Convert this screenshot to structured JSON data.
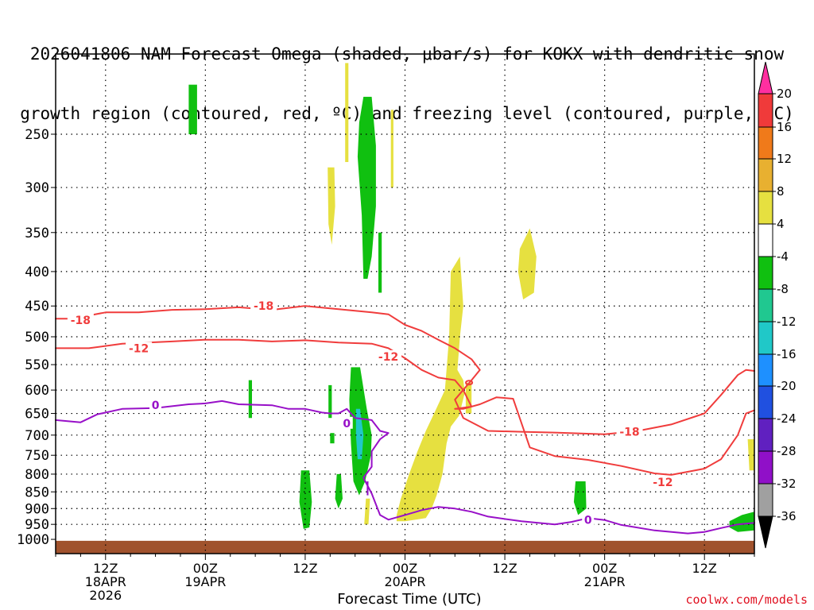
{
  "title_line1": "2026041806 NAM Forecast Omega (shaded, μbar/s) for KOKX with dendritic snow",
  "title_line2": "growth region (contoured, red, ºC) and freezing level (contoured, purple, ºC)",
  "xaxis_title": "Forecast Time (UTC)",
  "credit": "coolwx.com/models",
  "chart_data": {
    "type": "time-height contour",
    "title": "2026041806 NAM Forecast Omega (shaded, μbar/s) for KOKX with dendritic snow growth region (contoured, red, ºC) and freezing level (contoured, purple, ºC)",
    "xlabel": "Forecast Time (UTC)",
    "ylabel": "Pressure (hPa)",
    "x_range_hours": [
      0,
      84
    ],
    "y_range_hpa": [
      1050,
      190
    ],
    "y_ticks": [
      250,
      300,
      350,
      400,
      450,
      500,
      550,
      600,
      650,
      700,
      750,
      800,
      850,
      900,
      950,
      1000
    ],
    "x_ticks": [
      {
        "hour": 6,
        "lines": [
          "12Z",
          "18APR",
          "2026"
        ]
      },
      {
        "hour": 18,
        "lines": [
          "00Z",
          "19APR"
        ]
      },
      {
        "hour": 30,
        "lines": [
          "12Z"
        ]
      },
      {
        "hour": 42,
        "lines": [
          "00Z",
          "20APR"
        ]
      },
      {
        "hour": 54,
        "lines": [
          "12Z"
        ]
      },
      {
        "hour": 66,
        "lines": [
          "00Z",
          "21APR"
        ]
      },
      {
        "hour": 78,
        "lines": [
          "12Z"
        ]
      }
    ],
    "colorbar": {
      "labels": [
        "20",
        "16",
        "12",
        "8",
        "4",
        "-4",
        "-8",
        "-12",
        "-16",
        "-20",
        "-24",
        "-28",
        "-32",
        "-36"
      ],
      "colors": [
        "#ff2fa0",
        "#f03a3a",
        "#f07a1a",
        "#e8b030",
        "#e6e040",
        "#ffffff",
        "#10c010",
        "#20c890",
        "#20c8c8",
        "#1e90ff",
        "#2050e0",
        "#6020c0",
        "#9010c8",
        "#a0a0a0",
        "#000000"
      ]
    },
    "contours": [
      {
        "name": "dgz-18",
        "color": "#f03c3c",
        "label": "-18",
        "points": [
          [
            0,
            470
          ],
          [
            2,
            470
          ],
          [
            6,
            460
          ],
          [
            10,
            460
          ],
          [
            14,
            456
          ],
          [
            18,
            455
          ],
          [
            22,
            452
          ],
          [
            26,
            456
          ],
          [
            30,
            450
          ],
          [
            34,
            455
          ],
          [
            38,
            460
          ],
          [
            40,
            463
          ],
          [
            42,
            480
          ],
          [
            44,
            490
          ],
          [
            46,
            505
          ],
          [
            48,
            520
          ],
          [
            50,
            540
          ],
          [
            51,
            560
          ],
          [
            50,
            580
          ],
          [
            48,
            620
          ],
          [
            49,
            660
          ],
          [
            52,
            690
          ],
          [
            56,
            692
          ],
          [
            60,
            694
          ],
          [
            66,
            698
          ],
          [
            70,
            690
          ],
          [
            74,
            675
          ],
          [
            78,
            650
          ],
          [
            80,
            610
          ],
          [
            82,
            570
          ],
          [
            83,
            560
          ],
          [
            84,
            562
          ]
        ]
      },
      {
        "name": "dgz-12",
        "color": "#f03c3c",
        "label": "-12",
        "points": [
          [
            0,
            520
          ],
          [
            4,
            520
          ],
          [
            8,
            512
          ],
          [
            14,
            508
          ],
          [
            18,
            505
          ],
          [
            22,
            505
          ],
          [
            26,
            508
          ],
          [
            30,
            506
          ],
          [
            34,
            510
          ],
          [
            38,
            512
          ],
          [
            40,
            520
          ],
          [
            42,
            538
          ],
          [
            44,
            560
          ],
          [
            46,
            575
          ],
          [
            48,
            580
          ],
          [
            49,
            600
          ],
          [
            50,
            635
          ],
          [
            48,
            640
          ],
          [
            49,
            640
          ],
          [
            51,
            630
          ],
          [
            53,
            615
          ],
          [
            55,
            618
          ],
          [
            57,
            730
          ],
          [
            60,
            752
          ],
          [
            64,
            762
          ],
          [
            68,
            778
          ],
          [
            72,
            798
          ],
          [
            74,
            802
          ],
          [
            78,
            785
          ],
          [
            80,
            760
          ],
          [
            82,
            700
          ],
          [
            83,
            650
          ],
          [
            84,
            643
          ]
        ]
      },
      {
        "name": "freezing-level-0",
        "color": "#9810c8",
        "label": "0",
        "points": [
          [
            0,
            665
          ],
          [
            3,
            670
          ],
          [
            5,
            652
          ],
          [
            8,
            640
          ],
          [
            12,
            638
          ],
          [
            16,
            630
          ],
          [
            18,
            628
          ],
          [
            20,
            623
          ],
          [
            22,
            630
          ],
          [
            26,
            632
          ],
          [
            28,
            640
          ],
          [
            30,
            640
          ],
          [
            32,
            648
          ],
          [
            33,
            650
          ],
          [
            34,
            650
          ],
          [
            35,
            640
          ],
          [
            36,
            660
          ],
          [
            38,
            665
          ],
          [
            39,
            690
          ],
          [
            40,
            695
          ],
          [
            39,
            710
          ],
          [
            38,
            740
          ],
          [
            38,
            780
          ],
          [
            37,
            810
          ],
          [
            38,
            855
          ],
          [
            39,
            920
          ],
          [
            40,
            935
          ],
          [
            42,
            920
          ],
          [
            44,
            905
          ],
          [
            46,
            895
          ],
          [
            48,
            900
          ],
          [
            50,
            910
          ],
          [
            52,
            925
          ],
          [
            56,
            940
          ],
          [
            60,
            950
          ],
          [
            62,
            942
          ],
          [
            64,
            930
          ],
          [
            66,
            936
          ],
          [
            68,
            952
          ],
          [
            72,
            970
          ],
          [
            76,
            980
          ],
          [
            78,
            975
          ],
          [
            80,
            962
          ],
          [
            82,
            950
          ],
          [
            84,
            945
          ]
        ]
      }
    ],
    "contour_labels": [
      {
        "text": "-18",
        "hour": 3,
        "hpa": 472
      },
      {
        "text": "-18",
        "hour": 25,
        "hpa": 450
      },
      {
        "text": "-12",
        "hour": 10,
        "hpa": 520
      },
      {
        "text": "-12",
        "hour": 40,
        "hpa": 535
      },
      {
        "text": "-18",
        "hour": 69,
        "hpa": 692
      },
      {
        "text": "-12",
        "hour": 73,
        "hpa": 822
      },
      {
        "text": "0",
        "hour": 12,
        "hpa": 632
      },
      {
        "text": "0",
        "hour": 35,
        "hpa": 672
      },
      {
        "text": "0",
        "hour": 64,
        "hpa": 935
      }
    ],
    "omega_shading": [
      {
        "color": "#10c010",
        "points": [
          [
            16,
            211
          ],
          [
            17,
            211
          ],
          [
            17,
            250
          ],
          [
            16,
            250
          ]
        ]
      },
      {
        "color": "#10c010",
        "points": [
          [
            37,
            220
          ],
          [
            38,
            220
          ],
          [
            38.5,
            260
          ],
          [
            38.5,
            320
          ],
          [
            38,
            380
          ],
          [
            37.5,
            410
          ],
          [
            37,
            410
          ],
          [
            36.8,
            330
          ],
          [
            36.3,
            270
          ],
          [
            36.5,
            240
          ]
        ]
      },
      {
        "color": "#10c010",
        "points": [
          [
            38.8,
            350
          ],
          [
            39.2,
            350
          ],
          [
            39.2,
            430
          ],
          [
            38.8,
            430
          ]
        ]
      },
      {
        "color": "#e6e040",
        "points": [
          [
            34.8,
            196
          ],
          [
            35.2,
            196
          ],
          [
            35.2,
            275
          ],
          [
            34.8,
            275
          ]
        ]
      },
      {
        "color": "#e6e040",
        "points": [
          [
            40.3,
            230
          ],
          [
            40.6,
            230
          ],
          [
            40.6,
            300
          ],
          [
            40.3,
            300
          ]
        ]
      },
      {
        "color": "#e6e040",
        "points": [
          [
            32.7,
            280
          ],
          [
            33.5,
            280
          ],
          [
            33.6,
            320
          ],
          [
            33.2,
            365
          ],
          [
            32.8,
            340
          ]
        ]
      },
      {
        "color": "#e6e040",
        "points": [
          [
            55.8,
            370
          ],
          [
            57,
            345
          ],
          [
            57.8,
            380
          ],
          [
            57.5,
            430
          ],
          [
            56.2,
            440
          ],
          [
            55.6,
            400
          ]
        ]
      },
      {
        "color": "#e6e040",
        "points": [
          [
            47.5,
            400
          ],
          [
            48.6,
            380
          ],
          [
            49,
            450
          ],
          [
            48.6,
            500
          ],
          [
            48.3,
            560
          ],
          [
            49,
            580
          ],
          [
            49.2,
            605
          ],
          [
            48.5,
            655
          ],
          [
            47.5,
            680
          ],
          [
            47,
            720
          ],
          [
            46.5,
            800
          ],
          [
            45.8,
            860
          ],
          [
            45.2,
            900
          ],
          [
            44.5,
            930
          ],
          [
            43.3,
            935
          ],
          [
            42,
            940
          ],
          [
            41,
            940
          ],
          [
            41,
            920
          ],
          [
            41.5,
            870
          ],
          [
            42.5,
            800
          ],
          [
            43.5,
            740
          ],
          [
            44.5,
            690
          ],
          [
            45.5,
            650
          ],
          [
            46.8,
            600
          ],
          [
            47.3,
            500
          ]
        ]
      },
      {
        "color": "#e6e040",
        "points": [
          [
            49.3,
            585
          ],
          [
            50,
            585
          ],
          [
            50,
            650
          ],
          [
            49.3,
            650
          ]
        ]
      },
      {
        "color": "#10c010",
        "points": [
          [
            23.2,
            580
          ],
          [
            23.6,
            580
          ],
          [
            23.6,
            660
          ],
          [
            23.2,
            660
          ]
        ]
      },
      {
        "color": "#10c010",
        "points": [
          [
            32.8,
            590
          ],
          [
            33.2,
            590
          ],
          [
            33.2,
            660
          ],
          [
            32.8,
            660
          ]
        ]
      },
      {
        "color": "#10c010",
        "points": [
          [
            33,
            695
          ],
          [
            33.5,
            695
          ],
          [
            33.5,
            720
          ],
          [
            33,
            720
          ]
        ]
      },
      {
        "color": "#10c010",
        "points": [
          [
            29.5,
            790
          ],
          [
            30.5,
            790
          ],
          [
            30.8,
            880
          ],
          [
            30.5,
            960
          ],
          [
            29.8,
            965
          ],
          [
            29.3,
            880
          ]
        ]
      },
      {
        "color": "#10c010",
        "points": [
          [
            33.8,
            800
          ],
          [
            34.3,
            800
          ],
          [
            34.5,
            870
          ],
          [
            34,
            900
          ],
          [
            33.6,
            870
          ]
        ]
      },
      {
        "color": "#10c010",
        "points": [
          [
            35.5,
            555
          ],
          [
            36.6,
            555
          ],
          [
            37.4,
            640
          ],
          [
            38,
            700
          ],
          [
            37.9,
            750
          ],
          [
            37.2,
            820
          ],
          [
            36.5,
            860
          ],
          [
            35.8,
            820
          ],
          [
            35.5,
            720
          ],
          [
            35.3,
            620
          ]
        ]
      },
      {
        "color": "#20c8c8",
        "points": [
          [
            36.1,
            640
          ],
          [
            36.6,
            640
          ],
          [
            37,
            700
          ],
          [
            36.8,
            760
          ],
          [
            36.3,
            760
          ],
          [
            36.1,
            700
          ]
        ]
      },
      {
        "color": "#e6e040",
        "points": [
          [
            37.3,
            870
          ],
          [
            37.8,
            870
          ],
          [
            37.6,
            950
          ],
          [
            37.1,
            950
          ]
        ]
      },
      {
        "color": "#9010c8",
        "points": [
          [
            37.4,
            820
          ],
          [
            37.6,
            820
          ],
          [
            37.6,
            860
          ],
          [
            37.4,
            860
          ]
        ]
      },
      {
        "color": "#10c010",
        "points": [
          [
            62.5,
            820
          ],
          [
            63.7,
            820
          ],
          [
            63.8,
            900
          ],
          [
            62.8,
            920
          ],
          [
            62.3,
            880
          ]
        ]
      },
      {
        "color": "#10c010",
        "points": [
          [
            81,
            940
          ],
          [
            82.5,
            920
          ],
          [
            84,
            910
          ],
          [
            84,
            970
          ],
          [
            82,
            975
          ],
          [
            81,
            960
          ]
        ]
      },
      {
        "color": "#e6e040",
        "points": [
          [
            83.2,
            710
          ],
          [
            84,
            710
          ],
          [
            84,
            790
          ],
          [
            83.4,
            790
          ]
        ]
      }
    ],
    "surface_fill": {
      "color": "#a0522d",
      "top_hpa": 1005
    }
  }
}
